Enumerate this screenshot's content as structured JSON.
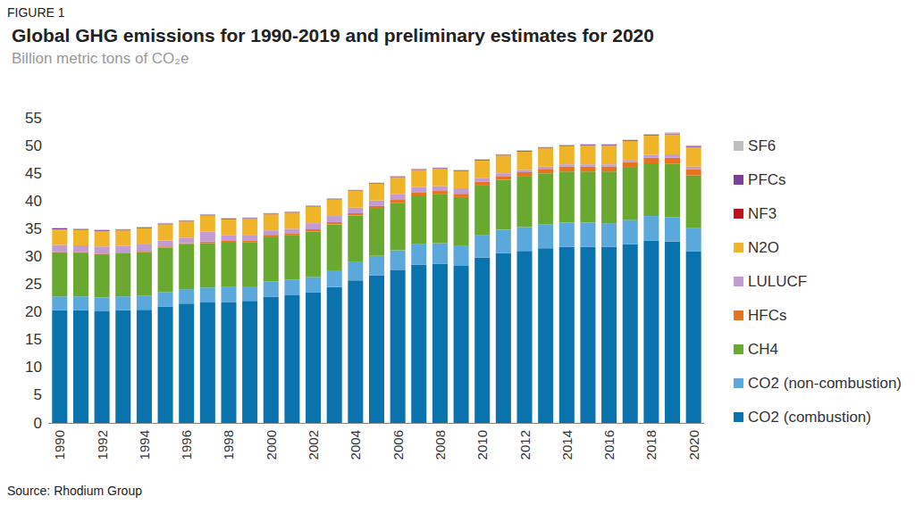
{
  "chart_data": {
    "type": "bar",
    "title": "Global GHG emissions for 1990-2019 and preliminary estimates for 2020",
    "subtitle": "Billion metric tons of CO₂e",
    "annotations": [
      "FIGURE 1",
      "Source: Rhodium Group"
    ],
    "stacked": true,
    "grid": false,
    "legend": "right",
    "categories": [
      "1990",
      null,
      "1992",
      null,
      "1994",
      null,
      "1996",
      null,
      "1998",
      null,
      "2000",
      null,
      "2002",
      null,
      "2004",
      null,
      "2006",
      null,
      "2008",
      null,
      "2010",
      null,
      "2012",
      null,
      "2014",
      null,
      "2016",
      null,
      "2018",
      null,
      "2020"
    ],
    "ylim": [
      0,
      55
    ],
    "yticks": [
      0,
      5,
      10,
      15,
      20,
      25,
      30,
      35,
      40,
      45,
      50,
      55
    ],
    "series": [
      {
        "name": "CO2 (combustion)",
        "color": "#0a72ad",
        "values": [
          20.3,
          20.3,
          20.1,
          20.3,
          20.4,
          21.0,
          21.5,
          21.7,
          21.8,
          22.0,
          22.7,
          23.0,
          23.5,
          24.5,
          25.7,
          26.6,
          27.5,
          28.5,
          28.7,
          28.3,
          29.8,
          30.6,
          31.0,
          31.5,
          31.7,
          31.7,
          31.7,
          32.2,
          32.9,
          32.7,
          30.9
        ]
      },
      {
        "name": "CO2 (non-combustion)",
        "color": "#5ba8dc",
        "values": [
          2.5,
          2.5,
          2.5,
          2.5,
          2.5,
          2.6,
          2.6,
          2.7,
          2.7,
          2.6,
          2.8,
          2.8,
          2.8,
          3.0,
          3.3,
          3.5,
          3.6,
          3.8,
          3.7,
          3.6,
          4.0,
          4.2,
          4.3,
          4.3,
          4.4,
          4.4,
          4.3,
          4.4,
          4.4,
          4.4,
          4.3
        ]
      },
      {
        "name": "CH4",
        "color": "#6aa92f",
        "values": [
          7.9,
          7.9,
          7.8,
          7.8,
          7.9,
          8.0,
          8.1,
          8.0,
          8.0,
          8.0,
          8.1,
          8.1,
          8.2,
          8.3,
          8.4,
          8.5,
          8.6,
          8.7,
          8.8,
          8.8,
          9.0,
          9.0,
          9.1,
          9.2,
          9.2,
          9.2,
          9.3,
          9.4,
          9.5,
          9.6,
          9.4
        ]
      },
      {
        "name": "HFCs",
        "color": "#e8731f",
        "values": [
          0.1,
          0.1,
          0.1,
          0.1,
          0.2,
          0.2,
          0.2,
          0.3,
          0.3,
          0.3,
          0.3,
          0.3,
          0.4,
          0.4,
          0.4,
          0.5,
          0.5,
          0.6,
          0.6,
          0.6,
          0.7,
          0.7,
          0.8,
          0.8,
          0.9,
          0.9,
          0.9,
          1.0,
          1.0,
          1.1,
          1.1
        ]
      },
      {
        "name": "LULUCF",
        "color": "#c39bd3",
        "values": [
          1.3,
          1.2,
          1.3,
          1.2,
          1.3,
          1.1,
          1.0,
          1.8,
          1.0,
          1.0,
          0.8,
          0.8,
          1.1,
          1.1,
          1.0,
          1.0,
          1.0,
          0.9,
          0.9,
          1.0,
          0.6,
          0.5,
          0.4,
          0.4,
          0.4,
          0.4,
          0.4,
          0.4,
          0.5,
          0.6,
          0.5
        ]
      },
      {
        "name": "N2O",
        "color": "#f0b429",
        "values": [
          2.8,
          2.8,
          2.8,
          2.8,
          2.8,
          2.9,
          2.9,
          2.9,
          2.9,
          2.9,
          2.9,
          2.9,
          3.0,
          3.0,
          3.0,
          3.0,
          3.1,
          3.1,
          3.1,
          3.1,
          3.2,
          3.2,
          3.3,
          3.3,
          3.3,
          3.4,
          3.4,
          3.4,
          3.5,
          3.6,
          3.5
        ]
      },
      {
        "name": "NF3",
        "color": "#c0121b",
        "values": [
          0.01,
          0.01,
          0.01,
          0.01,
          0.01,
          0.01,
          0.01,
          0.01,
          0.01,
          0.01,
          0.01,
          0.01,
          0.01,
          0.01,
          0.01,
          0.01,
          0.01,
          0.02,
          0.02,
          0.02,
          0.02,
          0.02,
          0.02,
          0.02,
          0.02,
          0.03,
          0.03,
          0.03,
          0.03,
          0.03,
          0.03
        ]
      },
      {
        "name": "PFCs",
        "color": "#7b3f99",
        "values": [
          0.15,
          0.15,
          0.14,
          0.14,
          0.14,
          0.14,
          0.14,
          0.14,
          0.13,
          0.13,
          0.13,
          0.12,
          0.12,
          0.12,
          0.12,
          0.12,
          0.12,
          0.13,
          0.13,
          0.11,
          0.13,
          0.13,
          0.13,
          0.13,
          0.13,
          0.13,
          0.13,
          0.13,
          0.14,
          0.14,
          0.14
        ]
      },
      {
        "name": "SF6",
        "color": "#bfbfbf",
        "values": [
          0.1,
          0.1,
          0.1,
          0.1,
          0.1,
          0.1,
          0.1,
          0.1,
          0.1,
          0.1,
          0.1,
          0.1,
          0.1,
          0.1,
          0.1,
          0.1,
          0.1,
          0.1,
          0.1,
          0.1,
          0.1,
          0.1,
          0.1,
          0.1,
          0.1,
          0.1,
          0.1,
          0.1,
          0.1,
          0.2,
          0.2
        ]
      }
    ]
  }
}
